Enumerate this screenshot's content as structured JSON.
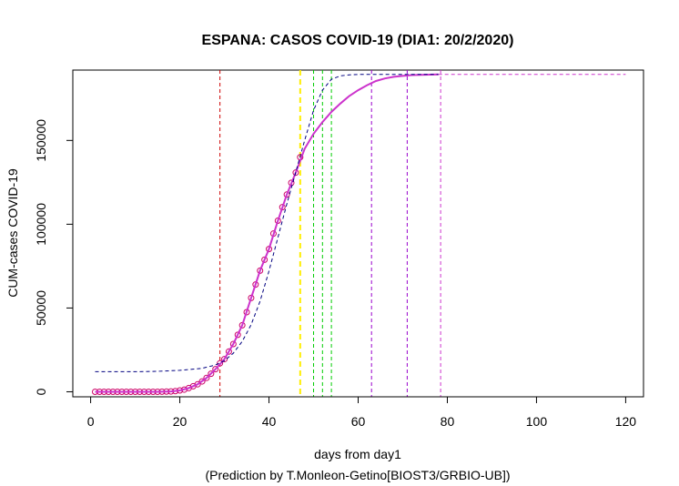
{
  "chart_data": {
    "type": "line",
    "title": "ESPANA: CASOS COVID-19 (DIA1: 20/2/2020)",
    "xlabel": "days from day1",
    "caption": "(Prediction by T.Monleon-Getino[BIOST3/GRBIO-UB])",
    "ylabel": "CUM-cases COVID-19",
    "xlim": [
      -4,
      124
    ],
    "ylim": [
      -3000,
      192000
    ],
    "x_ticks": [
      0,
      20,
      40,
      60,
      80,
      100,
      120
    ],
    "y_ticks": [
      0,
      50000,
      100000,
      150000
    ],
    "grid": false,
    "series": [
      {
        "style": "observed-points",
        "color": "#cc0066",
        "x": [
          1,
          2,
          3,
          4,
          5,
          6,
          7,
          8,
          9,
          10,
          11,
          12,
          13,
          14,
          15,
          16,
          17,
          18,
          19,
          20,
          21,
          22,
          23,
          24,
          25,
          26,
          27,
          28,
          29,
          30,
          31,
          32,
          33,
          34,
          35,
          36,
          37,
          38,
          39,
          40,
          41,
          42,
          43,
          44,
          45,
          46,
          47
        ],
        "y": [
          0,
          0,
          0,
          0,
          0,
          0,
          0,
          0,
          0,
          0,
          0,
          0,
          0,
          0,
          0,
          50,
          100,
          200,
          400,
          800,
          1300,
          2200,
          3300,
          4500,
          6200,
          8300,
          10800,
          13500,
          17000,
          19500,
          24000,
          28500,
          34000,
          39700,
          47500,
          56000,
          64000,
          72300,
          78800,
          85200,
          94400,
          102100,
          110200,
          117700,
          124700,
          130800,
          140000
        ]
      },
      {
        "style": "fitted-solid",
        "color": "#cc33cc",
        "x": [
          1,
          5,
          10,
          15,
          18,
          20,
          22,
          24,
          26,
          28,
          30,
          32,
          34,
          36,
          38,
          40,
          42,
          44,
          46,
          48,
          50,
          52,
          54,
          56,
          58,
          60,
          62,
          64,
          66,
          68,
          70,
          72,
          74,
          76,
          78
        ],
        "y": [
          0,
          0,
          0,
          0,
          200,
          800,
          2200,
          4500,
          8300,
          13500,
          19500,
          28500,
          39700,
          56000,
          72300,
          85200,
          102100,
          117700,
          130800,
          145000,
          154000,
          161000,
          167000,
          172000,
          176500,
          180000,
          183000,
          185500,
          187000,
          188000,
          188500,
          189000,
          189200,
          189300,
          189400
        ]
      },
      {
        "style": "prediction-dashed",
        "color": "#000080",
        "x": [
          1,
          5,
          10,
          15,
          20,
          25,
          28,
          30,
          32,
          34,
          36,
          38,
          40,
          42,
          44,
          46,
          48,
          50,
          52,
          54,
          56,
          58,
          60,
          65,
          70,
          75,
          78
        ],
        "y": [
          12000,
          12000,
          12000,
          12200,
          12800,
          14000,
          16000,
          18500,
          23000,
          30000,
          40000,
          54000,
          72000,
          92000,
          112000,
          131000,
          150000,
          168000,
          180000,
          186500,
          188500,
          189200,
          189400,
          189400,
          189400,
          189400,
          189400
        ]
      },
      {
        "style": "plateau-dashed",
        "color": "#cc33cc",
        "x": [
          78,
          120
        ],
        "y": [
          189400,
          189400
        ]
      }
    ],
    "vlines": [
      {
        "x": 29,
        "color": "#cc0000",
        "dash": "4,3",
        "width": 1
      },
      {
        "x": 47,
        "color": "#ffee00",
        "dash": "6,4",
        "width": 2
      },
      {
        "x": 50,
        "color": "#00cc00",
        "dash": "4,3",
        "width": 1
      },
      {
        "x": 52,
        "color": "#00cc00",
        "dash": "4,3",
        "width": 1
      },
      {
        "x": 54,
        "color": "#00cc00",
        "dash": "4,3",
        "width": 1
      },
      {
        "x": 63,
        "color": "#9900cc",
        "dash": "4,3",
        "width": 1
      },
      {
        "x": 71,
        "color": "#9900cc",
        "dash": "4,3",
        "width": 1
      },
      {
        "x": 78.5,
        "color": "#cc33cc",
        "dash": "4,3",
        "width": 1
      }
    ]
  }
}
